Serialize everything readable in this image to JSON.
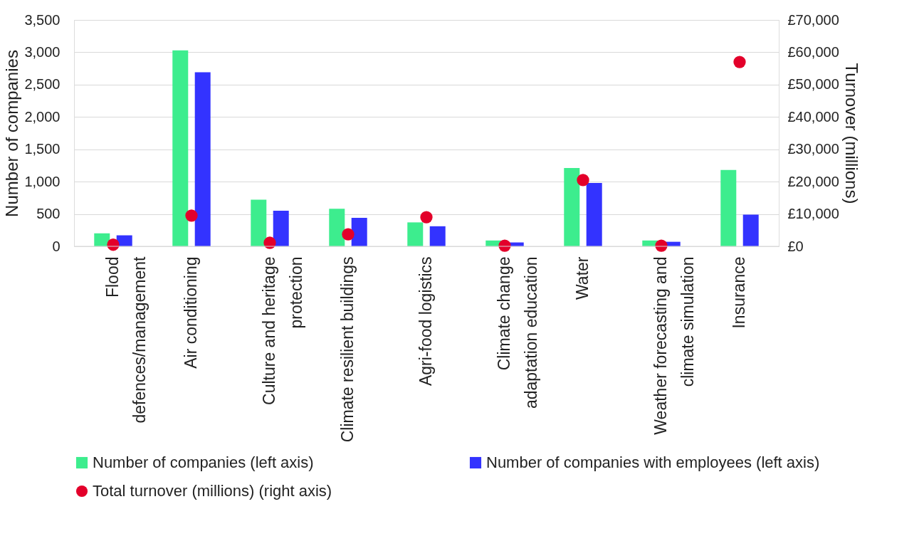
{
  "chart_data": {
    "type": "bar",
    "categories": [
      "Flood\ndefences/management",
      "Air conditioning",
      "Culture and heritage\nprotection",
      "Climate resilient buildings",
      "Agri-food logistics",
      "Climate change\nadaptation education",
      "Water",
      "Weather forecasting and\nclimate simulation",
      "Insurance"
    ],
    "ylabel": "Number of companies",
    "y2label": "Turnover (millions)",
    "ylim": [
      0,
      3500
    ],
    "yticks": [
      0,
      500,
      {
        "value": 1000,
        "label": "1,000"
      },
      {
        "value": 1500,
        "label": "1,500"
      },
      {
        "value": 2000,
        "label": "2,000"
      },
      {
        "value": 2500,
        "label": "2,500"
      },
      {
        "value": 3000,
        "label": "3,000"
      },
      {
        "value": 3500,
        "label": "3,500"
      }
    ],
    "y2lim": [
      0,
      70000
    ],
    "y2ticks": [
      {
        "value": 0,
        "label": "£0"
      },
      {
        "value": 10000,
        "label": "£10,000"
      },
      {
        "value": 20000,
        "label": "£20,000"
      },
      {
        "value": 30000,
        "label": "£30,000"
      },
      {
        "value": 40000,
        "label": "£40,000"
      },
      {
        "value": 50000,
        "label": "£50,000"
      },
      {
        "value": 60000,
        "label": "£60,000"
      },
      {
        "value": 70000,
        "label": "£70,000"
      }
    ],
    "grid": "y",
    "legend": "bottom",
    "series": [
      {
        "name": "Number of companies (left axis)",
        "color": "#3ded8e",
        "values": [
          200,
          3030,
          720,
          580,
          370,
          90,
          1210,
          90,
          1180
        ]
      },
      {
        "name": "Number of companies with employees (left axis)",
        "color": "#3333ff",
        "values": [
          170,
          2690,
          550,
          440,
          310,
          60,
          980,
          70,
          490
        ]
      },
      {
        "name": "Total turnover (millions) (right axis)",
        "type": "scatter",
        "axis": "y2",
        "marker": "circle",
        "color": "#e3002a",
        "values": [
          500,
          9500,
          1100,
          3700,
          9000,
          200,
          20500,
          200,
          57000
        ]
      }
    ]
  }
}
